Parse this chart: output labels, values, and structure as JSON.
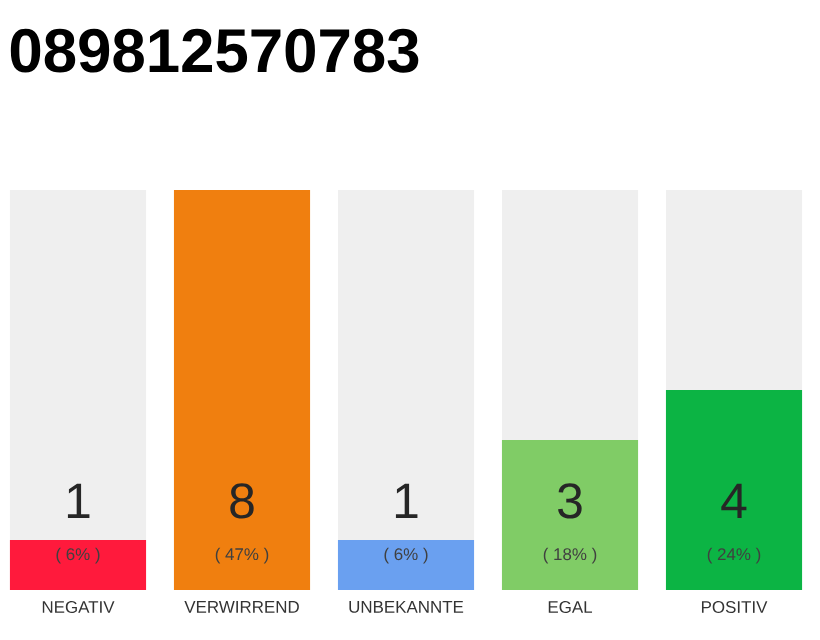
{
  "chart_data": {
    "type": "bar",
    "title": "089812570783",
    "categories": [
      "NEGATIV",
      "VERWIRREND",
      "UNBEKANNTE",
      "EGAL",
      "POSITIV"
    ],
    "values": [
      1,
      8,
      1,
      3,
      4
    ],
    "colors": [
      "#ff1a3c",
      "#f07f0f",
      "#6aa0f0",
      "#80cc66",
      "#0cb444"
    ],
    "value_labels": [
      "1",
      "8",
      "1",
      "3",
      "4"
    ],
    "annotations": [
      "( 6% )",
      "( 47% )",
      "( 6% )",
      "( 18% )",
      "( 24% )"
    ],
    "tick_labels": "x"
  }
}
